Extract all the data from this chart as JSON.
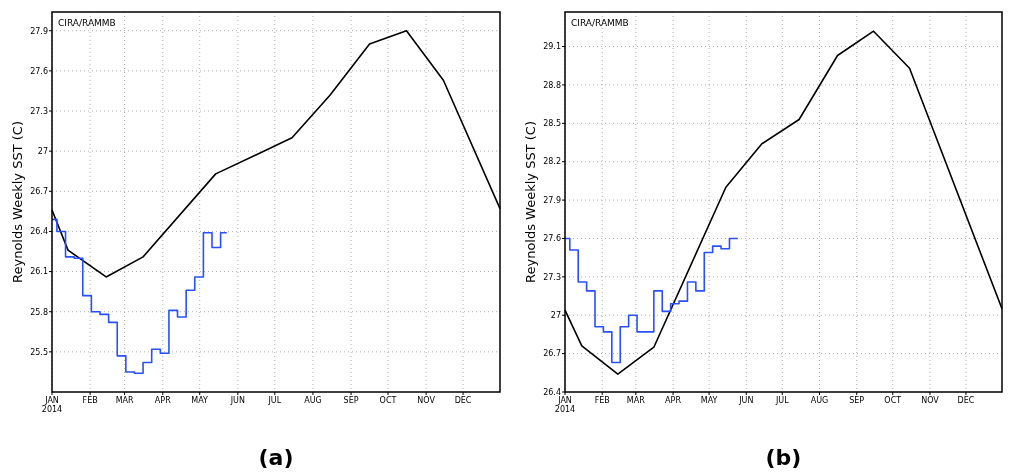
{
  "chart_data": [
    {
      "type": "line",
      "title": "(a)",
      "ylabel": "Reynolds Weekly SST (C)",
      "annotations": [
        "CIRA/RAMMB"
      ],
      "grid": true,
      "xlim": [
        "2014-01-01",
        "2014-12-31"
      ],
      "ylim": [
        25.2,
        28.04
      ],
      "yticks": [
        25.5,
        25.8,
        26.1,
        26.4,
        26.7,
        27,
        27.3,
        27.6,
        27.9
      ],
      "xticks": [
        {
          "value": "2014-01-01",
          "label": "JAN\n2014"
        },
        {
          "value": "2014-02-01",
          "label": "FEB"
        },
        {
          "value": "2014-03-01",
          "label": "MAR"
        },
        {
          "value": "2014-04-01",
          "label": "APR"
        },
        {
          "value": "2014-05-01",
          "label": "MAY"
        },
        {
          "value": "2014-06-01",
          "label": "JUN"
        },
        {
          "value": "2014-07-01",
          "label": "JUL"
        },
        {
          "value": "2014-08-01",
          "label": "AUG"
        },
        {
          "value": "2014-09-01",
          "label": "SEP"
        },
        {
          "value": "2014-10-01",
          "label": "OCT"
        },
        {
          "value": "2014-11-01",
          "label": "NOV"
        },
        {
          "value": "2014-12-01",
          "label": "DEC"
        }
      ],
      "series": [
        {
          "color": "#000000",
          "x": [
            "2014-01-01",
            "2014-01-14",
            "2014-02-14",
            "2014-03-16",
            "2014-05-14",
            "2014-07-15",
            "2014-08-15",
            "2014-09-16",
            "2014-10-16",
            "2014-11-15",
            "2014-12-31"
          ],
          "values": [
            26.56,
            26.26,
            26.06,
            26.21,
            26.83,
            27.1,
            27.42,
            27.8,
            27.9,
            27.53,
            26.57
          ]
        },
        {
          "type": "step",
          "color": "#2850ff",
          "x": [
            "2014-01-01",
            "2014-01-05",
            "2014-01-12",
            "2014-01-19",
            "2014-01-26",
            "2014-02-02",
            "2014-02-09",
            "2014-02-16",
            "2014-02-23",
            "2014-03-02",
            "2014-03-09",
            "2014-03-16",
            "2014-03-23",
            "2014-03-30",
            "2014-04-06",
            "2014-04-13",
            "2014-04-20",
            "2014-04-27",
            "2014-05-04",
            "2014-05-11",
            "2014-05-18",
            "2014-05-23"
          ],
          "values": [
            26.49,
            26.4,
            26.21,
            26.2,
            25.92,
            25.8,
            25.78,
            25.72,
            25.47,
            25.35,
            25.34,
            25.42,
            25.52,
            25.49,
            25.81,
            25.76,
            25.96,
            26.06,
            26.39,
            26.28,
            26.39,
            26.39
          ]
        }
      ]
    },
    {
      "type": "line",
      "title": "(b)",
      "ylabel": "Reynolds Weekly SST (C)",
      "annotations": [
        "CIRA/RAMMB"
      ],
      "grid": true,
      "xlim": [
        "2014-01-01",
        "2014-12-31"
      ],
      "ylim": [
        26.4,
        29.37
      ],
      "yticks": [
        26.4,
        26.7,
        27,
        27.3,
        27.6,
        27.9,
        28.2,
        28.5,
        28.8,
        29.1
      ],
      "xticks": [
        {
          "value": "2014-01-01",
          "label": "JAN\n2014"
        },
        {
          "value": "2014-02-01",
          "label": "FEB"
        },
        {
          "value": "2014-03-01",
          "label": "MAR"
        },
        {
          "value": "2014-04-01",
          "label": "APR"
        },
        {
          "value": "2014-05-01",
          "label": "MAY"
        },
        {
          "value": "2014-06-01",
          "label": "JUN"
        },
        {
          "value": "2014-07-01",
          "label": "JUL"
        },
        {
          "value": "2014-08-01",
          "label": "AUG"
        },
        {
          "value": "2014-09-01",
          "label": "SEP"
        },
        {
          "value": "2014-10-01",
          "label": "OCT"
        },
        {
          "value": "2014-11-01",
          "label": "NOV"
        },
        {
          "value": "2014-12-01",
          "label": "DEC"
        }
      ],
      "series": [
        {
          "color": "#000000",
          "x": [
            "2014-01-01",
            "2014-01-15",
            "2014-02-14",
            "2014-03-16",
            "2014-05-15",
            "2014-06-14",
            "2014-07-15",
            "2014-08-16",
            "2014-09-15",
            "2014-10-15",
            "2014-12-31"
          ],
          "values": [
            27.04,
            26.76,
            26.54,
            26.75,
            28.0,
            28.34,
            28.53,
            29.03,
            29.22,
            28.93,
            27.05
          ]
        },
        {
          "type": "step",
          "color": "#2850ff",
          "x": [
            "2014-01-01",
            "2014-01-05",
            "2014-01-12",
            "2014-01-19",
            "2014-01-26",
            "2014-02-02",
            "2014-02-09",
            "2014-02-16",
            "2014-02-23",
            "2014-03-02",
            "2014-03-09",
            "2014-03-16",
            "2014-03-23",
            "2014-03-30",
            "2014-04-06",
            "2014-04-13",
            "2014-04-20",
            "2014-04-27",
            "2014-05-04",
            "2014-05-11",
            "2014-05-18",
            "2014-05-25"
          ],
          "values": [
            27.6,
            27.51,
            27.26,
            27.19,
            26.91,
            26.87,
            26.63,
            26.91,
            27.0,
            26.87,
            26.87,
            27.19,
            27.03,
            27.09,
            27.11,
            27.26,
            27.19,
            27.49,
            27.54,
            27.52,
            27.6,
            27.6
          ]
        }
      ]
    }
  ]
}
